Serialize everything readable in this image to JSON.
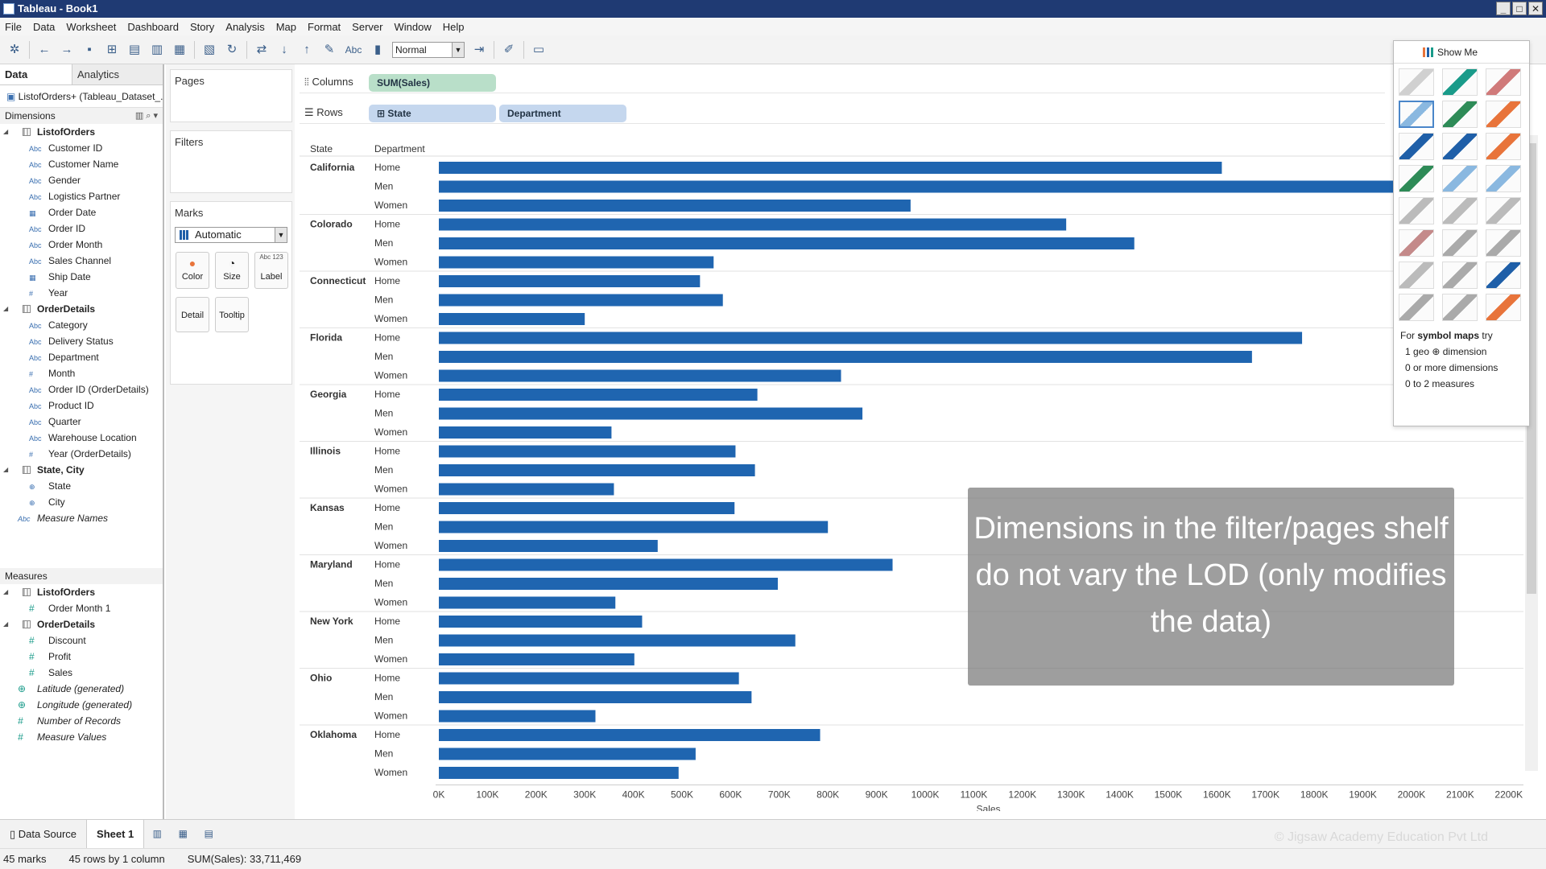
{
  "window": {
    "title": "Tableau - Book1",
    "controls": [
      "_",
      "□",
      "✕"
    ]
  },
  "menu": [
    "File",
    "Data",
    "Worksheet",
    "Dashboard",
    "Story",
    "Analysis",
    "Map",
    "Format",
    "Server",
    "Window",
    "Help"
  ],
  "toolbar": {
    "fit": "Normal",
    "abc": "Abc"
  },
  "datapane": {
    "tabs": [
      "Data",
      "Analytics"
    ],
    "datasource": "ListofOrders+ (Tableau_Dataset_...",
    "dimensions_label": "Dimensions",
    "measures_label": "Measures",
    "dimension_groups": [
      {
        "name": "ListofOrders",
        "fields": [
          {
            "t": "Abc",
            "n": "Customer ID"
          },
          {
            "t": "Abc",
            "n": "Customer Name"
          },
          {
            "t": "Abc",
            "n": "Gender"
          },
          {
            "t": "Abc",
            "n": "Logistics Partner"
          },
          {
            "t": "▦",
            "n": "Order Date"
          },
          {
            "t": "Abc",
            "n": "Order ID"
          },
          {
            "t": "Abc",
            "n": "Order Month"
          },
          {
            "t": "Abc",
            "n": "Sales Channel"
          },
          {
            "t": "▦",
            "n": "Ship Date"
          },
          {
            "t": "#",
            "n": "Year"
          }
        ]
      },
      {
        "name": "OrderDetails",
        "fields": [
          {
            "t": "Abc",
            "n": "Category"
          },
          {
            "t": "Abc",
            "n": "Delivery Status"
          },
          {
            "t": "Abc",
            "n": "Department"
          },
          {
            "t": "#",
            "n": "Month"
          },
          {
            "t": "Abc",
            "n": "Order ID (OrderDetails)"
          },
          {
            "t": "Abc",
            "n": "Product ID"
          },
          {
            "t": "Abc",
            "n": "Quarter"
          },
          {
            "t": "Abc",
            "n": "Warehouse Location"
          },
          {
            "t": "#",
            "n": "Year (OrderDetails)"
          }
        ]
      },
      {
        "name": "State, City",
        "fields": [
          {
            "t": "⊕",
            "n": "State"
          },
          {
            "t": "⊕",
            "n": "City"
          }
        ]
      }
    ],
    "measure_names": "Measure Names",
    "measure_groups": [
      {
        "name": "ListofOrders",
        "fields": [
          {
            "t": "#",
            "n": "Order Month 1"
          }
        ]
      },
      {
        "name": "OrderDetails",
        "fields": [
          {
            "t": "#",
            "n": "Discount"
          },
          {
            "t": "#",
            "n": "Profit"
          },
          {
            "t": "#",
            "n": "Sales"
          }
        ]
      }
    ],
    "measure_extras": [
      {
        "t": "⊕",
        "n": "Latitude (generated)"
      },
      {
        "t": "⊕",
        "n": "Longitude (generated)"
      },
      {
        "t": "#",
        "n": "Number of Records"
      },
      {
        "t": "#",
        "n": "Measure Values"
      }
    ]
  },
  "shelves": {
    "pages": "Pages",
    "filters": "Filters",
    "marks": "Marks",
    "mark_type": "Automatic",
    "buttons": {
      "color": "Color",
      "size": "Size",
      "label": "Label",
      "detail": "Detail",
      "tooltip": "Tooltip"
    },
    "label_glyph": "Abc 123",
    "columns_label": "Columns",
    "rows_label": "Rows",
    "columns_pill": "SUM(Sales)",
    "rows_pills": [
      "State",
      "Department"
    ]
  },
  "showme": {
    "title": "Show Me",
    "hint_lead": "For ",
    "hint_bold": "symbol maps",
    "hint_tail": " try",
    "hint_lines": [
      "1 geo ⊕ dimension",
      "0 or more dimensions",
      "0 to 2 measures"
    ]
  },
  "overlay_text": "Dimensions in the filter/pages shelf do not vary the LOD (only modifies the data)",
  "bottom": {
    "datasource": "Data Source",
    "sheet": "Sheet 1",
    "watermark": "© Jigsaw Academy Education Pvt Ltd"
  },
  "status": {
    "marks": "45 marks",
    "rows": "45 rows by 1 column",
    "sum": "SUM(Sales): 33,711,469"
  },
  "chart_data": {
    "type": "bar",
    "orientation": "horizontal",
    "headers": [
      "State",
      "Department"
    ],
    "xlabel": "Sales",
    "xlim": [
      0,
      2260000
    ],
    "ticks": [
      "0K",
      "100K",
      "200K",
      "300K",
      "400K",
      "500K",
      "600K",
      "700K",
      "800K",
      "900K",
      "1000K",
      "1100K",
      "1200K",
      "1300K",
      "1400K",
      "1500K",
      "1600K",
      "1700K",
      "1800K",
      "1900K",
      "2000K",
      "2100K",
      "2200K"
    ],
    "bar_color": "#1f65b0",
    "groups": [
      {
        "state": "California",
        "rows": [
          [
            "Home",
            1610000
          ],
          [
            "Men",
            2260000
          ],
          [
            "Women",
            970000
          ]
        ]
      },
      {
        "state": "Colorado",
        "rows": [
          [
            "Home",
            1290000
          ],
          [
            "Men",
            1430000
          ],
          [
            "Women",
            565000
          ]
        ]
      },
      {
        "state": "Connecticut",
        "rows": [
          [
            "Home",
            537000
          ],
          [
            "Men",
            584000
          ],
          [
            "Women",
            300000
          ]
        ]
      },
      {
        "state": "Florida",
        "rows": [
          [
            "Home",
            1775000
          ],
          [
            "Men",
            1672000
          ],
          [
            "Women",
            827000
          ]
        ]
      },
      {
        "state": "Georgia",
        "rows": [
          [
            "Home",
            655000
          ],
          [
            "Men",
            871000
          ],
          [
            "Women",
            355000
          ]
        ]
      },
      {
        "state": "Illinois",
        "rows": [
          [
            "Home",
            610000
          ],
          [
            "Men",
            650000
          ],
          [
            "Women",
            360000
          ]
        ]
      },
      {
        "state": "Kansas",
        "rows": [
          [
            "Home",
            608000
          ],
          [
            "Men",
            800000
          ],
          [
            "Women",
            450000
          ]
        ]
      },
      {
        "state": "Maryland",
        "rows": [
          [
            "Home",
            933000
          ],
          [
            "Men",
            697000
          ],
          [
            "Women",
            363000
          ]
        ]
      },
      {
        "state": "New York",
        "rows": [
          [
            "Home",
            418000
          ],
          [
            "Men",
            733000
          ],
          [
            "Women",
            402000
          ]
        ]
      },
      {
        "state": "Ohio",
        "rows": [
          [
            "Home",
            617000
          ],
          [
            "Men",
            643000
          ],
          [
            "Women",
            322000
          ]
        ]
      },
      {
        "state": "Oklahoma",
        "rows": [
          [
            "Home",
            784000
          ],
          [
            "Men",
            528000
          ],
          [
            "Women",
            493000
          ]
        ]
      }
    ]
  }
}
